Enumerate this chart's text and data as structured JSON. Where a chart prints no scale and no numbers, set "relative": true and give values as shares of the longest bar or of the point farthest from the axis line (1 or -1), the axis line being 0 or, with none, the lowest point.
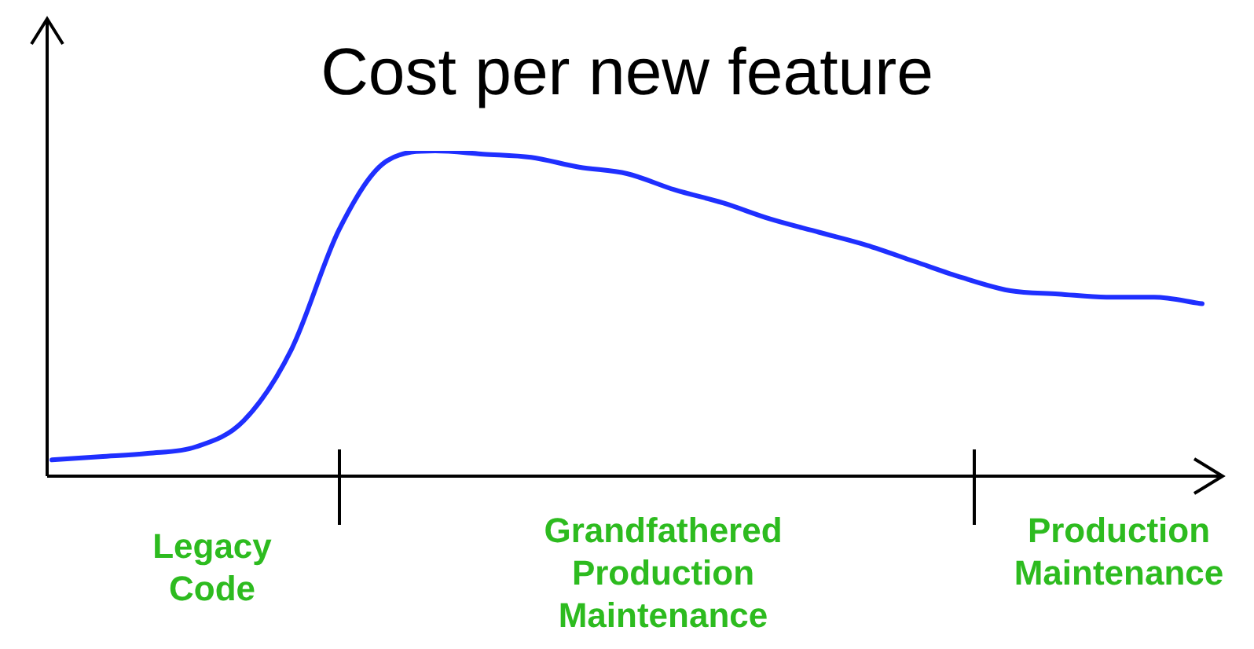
{
  "chart_data": {
    "type": "line",
    "title": "Cost per new feature",
    "relative": true,
    "marker": "none",
    "categories": [
      null,
      null,
      null,
      null,
      null,
      null,
      null,
      null,
      null,
      null,
      null,
      null,
      null,
      null,
      null,
      null,
      null,
      null,
      null,
      null,
      null,
      null,
      null,
      null,
      null
    ],
    "series": [
      {
        "color": "#1f2fff",
        "values": [
          0.05,
          0.06,
          0.07,
          0.09,
          0.17,
          0.39,
          0.76,
          0.97,
          1.0,
          0.99,
          0.98,
          0.95,
          0.93,
          0.88,
          0.84,
          0.79,
          0.75,
          0.71,
          0.66,
          0.61,
          0.57,
          0.56,
          0.55,
          0.55,
          0.53
        ]
      }
    ],
    "annotations": [
      "Legacy Code",
      "Grandfathered Production Maintenance",
      "Production Maintenance"
    ]
  }
}
